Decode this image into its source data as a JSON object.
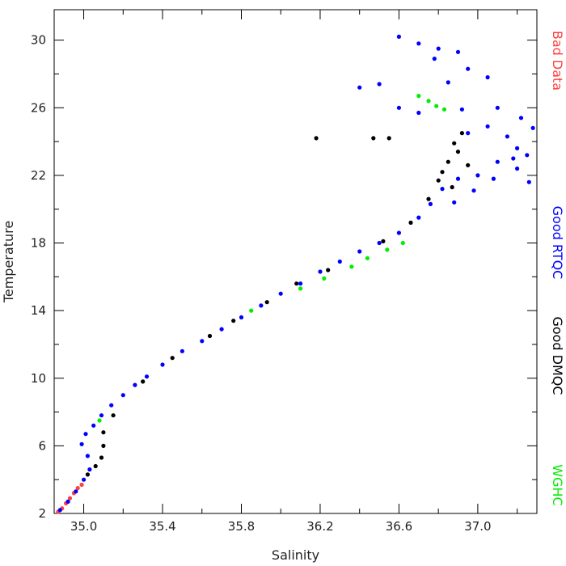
{
  "chart_data": {
    "type": "scatter",
    "xlabel": "Salinity",
    "ylabel": "Temperature",
    "xlim": [
      34.85,
      37.3
    ],
    "ylim": [
      2,
      31.8
    ],
    "x_ticks": [
      "35.0",
      "35.4",
      "35.8",
      "36.2",
      "36.6",
      "37.0"
    ],
    "x_tick_values": [
      35.0,
      35.4,
      35.8,
      36.2,
      36.6,
      37.0
    ],
    "y_ticks": [
      "2",
      "6",
      "10",
      "14",
      "18",
      "22",
      "26",
      "30"
    ],
    "y_tick_values": [
      2,
      6,
      10,
      14,
      18,
      22,
      26,
      30
    ],
    "legend_placement": "right side, vertical",
    "series": [
      {
        "name": "Bad Data",
        "color": "#ff4040",
        "points": [
          [
            34.87,
            2.1
          ],
          [
            34.89,
            2.3
          ],
          [
            34.91,
            2.6
          ],
          [
            34.93,
            2.9
          ],
          [
            34.95,
            3.2
          ],
          [
            34.97,
            3.5
          ],
          [
            34.99,
            3.7
          ]
        ]
      },
      {
        "name": "Good RTQC",
        "color": "#0000ff",
        "points": [
          [
            34.88,
            2.2
          ],
          [
            34.92,
            2.7
          ],
          [
            34.96,
            3.3
          ],
          [
            35.0,
            4.0
          ],
          [
            35.03,
            4.6
          ],
          [
            35.02,
            5.4
          ],
          [
            34.99,
            6.1
          ],
          [
            35.01,
            6.7
          ],
          [
            35.05,
            7.2
          ],
          [
            35.09,
            7.8
          ],
          [
            35.14,
            8.4
          ],
          [
            35.2,
            9.0
          ],
          [
            35.26,
            9.6
          ],
          [
            35.32,
            10.1
          ],
          [
            35.4,
            10.8
          ],
          [
            35.5,
            11.6
          ],
          [
            35.6,
            12.2
          ],
          [
            35.7,
            12.9
          ],
          [
            35.8,
            13.6
          ],
          [
            35.9,
            14.3
          ],
          [
            36.0,
            15.0
          ],
          [
            36.1,
            15.6
          ],
          [
            36.2,
            16.3
          ],
          [
            36.3,
            16.9
          ],
          [
            36.4,
            17.5
          ],
          [
            36.5,
            18.0
          ],
          [
            36.6,
            18.6
          ],
          [
            36.7,
            19.5
          ],
          [
            36.76,
            20.3
          ],
          [
            36.82,
            21.2
          ],
          [
            36.9,
            21.8
          ],
          [
            37.0,
            22.0
          ],
          [
            37.1,
            22.8
          ],
          [
            37.2,
            23.6
          ],
          [
            37.28,
            24.8
          ],
          [
            37.25,
            23.2
          ],
          [
            37.15,
            24.3
          ],
          [
            37.05,
            24.9
          ],
          [
            36.95,
            24.5
          ],
          [
            37.1,
            26.0
          ],
          [
            37.05,
            27.8
          ],
          [
            36.95,
            28.3
          ],
          [
            36.8,
            29.5
          ],
          [
            36.7,
            29.8
          ],
          [
            36.6,
            30.2
          ],
          [
            36.5,
            27.4
          ],
          [
            36.4,
            27.2
          ],
          [
            36.6,
            26.0
          ],
          [
            36.7,
            25.7
          ],
          [
            36.85,
            27.5
          ],
          [
            37.2,
            22.4
          ],
          [
            37.26,
            21.6
          ],
          [
            36.88,
            20.4
          ],
          [
            36.98,
            21.1
          ],
          [
            37.08,
            21.8
          ],
          [
            37.18,
            23.0
          ],
          [
            37.22,
            25.4
          ],
          [
            36.92,
            25.9
          ],
          [
            36.78,
            28.9
          ],
          [
            36.9,
            29.3
          ]
        ]
      },
      {
        "name": "Good DMQC",
        "color": "#000000",
        "points": [
          [
            35.02,
            4.3
          ],
          [
            35.06,
            4.8
          ],
          [
            35.09,
            5.3
          ],
          [
            35.1,
            6.0
          ],
          [
            35.1,
            6.8
          ],
          [
            35.15,
            7.8
          ],
          [
            35.3,
            9.8
          ],
          [
            35.45,
            11.2
          ],
          [
            35.64,
            12.5
          ],
          [
            35.76,
            13.4
          ],
          [
            35.93,
            14.5
          ],
          [
            36.08,
            15.6
          ],
          [
            36.24,
            16.4
          ],
          [
            36.52,
            18.1
          ],
          [
            36.66,
            19.2
          ],
          [
            36.75,
            20.6
          ],
          [
            36.8,
            21.7
          ],
          [
            36.85,
            22.8
          ],
          [
            36.88,
            23.9
          ],
          [
            36.92,
            24.5
          ],
          [
            36.82,
            22.2
          ],
          [
            36.87,
            21.3
          ],
          [
            36.9,
            23.4
          ],
          [
            36.95,
            22.6
          ],
          [
            36.18,
            24.2
          ],
          [
            36.47,
            24.2
          ],
          [
            36.55,
            24.2
          ]
        ]
      },
      {
        "name": "WGHC",
        "color": "#00ee00",
        "points": [
          [
            35.08,
            7.5
          ],
          [
            35.85,
            14.0
          ],
          [
            36.1,
            15.3
          ],
          [
            36.22,
            15.9
          ],
          [
            36.36,
            16.6
          ],
          [
            36.44,
            17.1
          ],
          [
            36.54,
            17.6
          ],
          [
            36.62,
            18.0
          ],
          [
            36.7,
            26.7
          ],
          [
            36.75,
            26.4
          ],
          [
            36.79,
            26.1
          ],
          [
            36.83,
            25.9
          ]
        ]
      }
    ]
  }
}
